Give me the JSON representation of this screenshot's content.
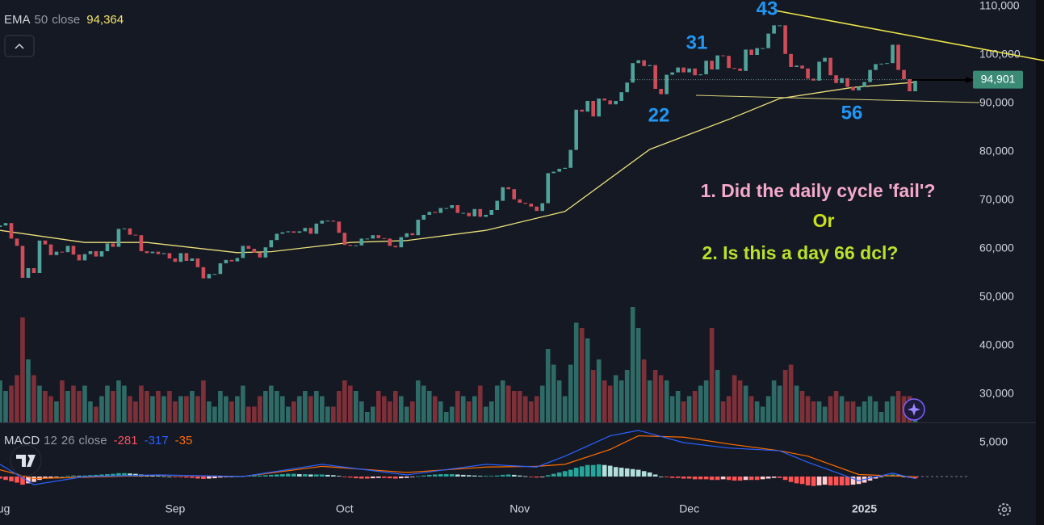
{
  "chart_data": {
    "type": "candlestick",
    "ema": {
      "name": "EMA",
      "length": 50,
      "source": "close",
      "last": {
        "value": 94364,
        "label": "94,364"
      },
      "color": "#ebe07a",
      "x": [
        0,
        15,
        26,
        42,
        48,
        62,
        72,
        86,
        100,
        115,
        129,
        138,
        151,
        162
      ],
      "values": [
        63800,
        61300,
        61300,
        59200,
        59400,
        61300,
        61700,
        63800,
        67700,
        80500,
        86700,
        91000,
        93300,
        94364
      ]
    },
    "candles": {
      "up_color": "#4fa39a",
      "down_color": "#d04c58",
      "first_open": 64500,
      "close": [
        64800,
        65300,
        62100,
        60600,
        54000,
        56000,
        55000,
        61700,
        60900,
        58700,
        59400,
        59300,
        60600,
        58800,
        57600,
        58900,
        59500,
        58400,
        59500,
        61100,
        60400,
        64100,
        64200,
        62900,
        62800,
        59500,
        59100,
        59400,
        58900,
        59100,
        58000,
        57300,
        59100,
        57500,
        58000,
        56200,
        53900,
        54800,
        54800,
        57000,
        57700,
        57400,
        58100,
        60600,
        60000,
        59200,
        58200,
        60300,
        61800,
        63100,
        63400,
        63600,
        63300,
        63600,
        64300,
        63100,
        65200,
        65800,
        65800,
        65600,
        63300,
        60800,
        60600,
        60700,
        62100,
        62100,
        62800,
        62200,
        62100,
        60600,
        60300,
        62400,
        63200,
        62800,
        66000,
        67000,
        67600,
        67400,
        68400,
        68400,
        69000,
        67400,
        67400,
        66700,
        68200,
        66600,
        67000,
        68000,
        69900,
        72700,
        72300,
        70200,
        69500,
        69300,
        68700,
        67800,
        69400,
        75600,
        75900,
        76500,
        76700,
        80400,
        88700,
        88300,
        90500,
        87300,
        91000,
        90600,
        89800,
        90500,
        92300,
        94300,
        98300,
        98900,
        97700,
        97900,
        93000,
        91900,
        95900,
        96400,
        97400,
        96400,
        97200,
        95800,
        96000,
        98800,
        97000,
        99900,
        99800,
        97300,
        97200,
        96700,
        101100,
        100000,
        101400,
        101400,
        104400,
        106100,
        106100,
        100200,
        97500,
        97800,
        97200,
        95100,
        94700,
        98600,
        99400,
        95800,
        94200,
        95200,
        93400,
        92700,
        93400,
        94400,
        96900,
        98100,
        98200,
        98300,
        102100,
        96900,
        95000,
        92500,
        94900
      ]
    },
    "volume": {
      "up_color": "#2f6b66",
      "down_color": "#7e3038",
      "values": [
        40,
        30,
        35,
        45,
        100,
        60,
        45,
        35,
        30,
        25,
        20,
        40,
        30,
        35,
        30,
        35,
        20,
        15,
        25,
        35,
        30,
        40,
        35,
        25,
        20,
        35,
        30,
        25,
        30,
        25,
        30,
        20,
        25,
        25,
        30,
        25,
        40,
        20,
        15,
        30,
        25,
        20,
        25,
        35,
        15,
        15,
        25,
        30,
        35,
        30,
        25,
        15,
        20,
        25,
        30,
        25,
        30,
        25,
        15,
        15,
        30,
        40,
        35,
        30,
        20,
        10,
        15,
        30,
        25,
        20,
        30,
        25,
        15,
        20,
        40,
        35,
        30,
        25,
        20,
        10,
        15,
        30,
        25,
        20,
        25,
        35,
        15,
        20,
        35,
        40,
        35,
        30,
        30,
        25,
        20,
        25,
        35,
        70,
        55,
        40,
        25,
        55,
        95,
        90,
        80,
        50,
        60,
        40,
        35,
        45,
        40,
        50,
        110,
        90,
        60,
        40,
        50,
        45,
        40,
        25,
        30,
        20,
        25,
        30,
        35,
        40,
        90,
        50,
        20,
        25,
        45,
        40,
        35,
        25,
        20,
        15,
        25,
        40,
        35,
        50,
        55,
        35,
        30,
        25,
        20,
        20,
        15,
        25,
        30,
        25,
        20,
        20,
        15,
        20,
        25,
        20,
        10,
        20,
        25,
        30,
        25,
        25,
        20
      ]
    },
    "ylim": [
      24170,
      111330
    ],
    "yticks": [
      {
        "value": 30000,
        "label": "30,000"
      },
      {
        "value": 40000,
        "label": "40,000"
      },
      {
        "value": 50000,
        "label": "50,000"
      },
      {
        "value": 60000,
        "label": "60,000"
      },
      {
        "value": 70000,
        "label": "70,000"
      },
      {
        "value": 80000,
        "label": "80,000"
      },
      {
        "value": 90000,
        "label": "90,000"
      },
      {
        "value": 100000,
        "label": "100,000"
      },
      {
        "value": 110000,
        "label": "110,000"
      }
    ],
    "xlim": [
      0,
      171.5
    ],
    "xticks": [
      {
        "value": 0,
        "label": "Aug"
      },
      {
        "value": 31,
        "label": "Sep"
      },
      {
        "value": 61,
        "label": "Oct"
      },
      {
        "value": 92,
        "label": "Nov"
      },
      {
        "value": 122,
        "label": "Dec"
      },
      {
        "value": 153,
        "label": "2025"
      }
    ],
    "last_price": {
      "value": 94901,
      "label": "94,901"
    },
    "annotations": [
      "43",
      "31",
      "22",
      "56"
    ],
    "notes": [
      "1. Did the daily cycle 'fail'?",
      "Or",
      "2. Is this a day 66 dcl?"
    ],
    "macd": {
      "name": "MACD",
      "fast": 12,
      "slow": 26,
      "source": "close",
      "hist_last": -281,
      "macd_last": -317,
      "signal_last": -35,
      "ylim": [
        -3570,
        7735
      ],
      "yticks": [
        {
          "value": 5000,
          "label": "5,000"
        }
      ],
      "hist_colors": [
        "#26a69a",
        "#b2dfdb",
        "#ff5252",
        "#ffcdd2"
      ],
      "histogram": [
        -300,
        -500,
        -700,
        -900,
        -1200,
        -1000,
        -800,
        -500,
        -300,
        -200,
        -100,
        0,
        100,
        150,
        100,
        150,
        200,
        250,
        300,
        350,
        400,
        500,
        500,
        450,
        400,
        300,
        250,
        150,
        100,
        50,
        0,
        -50,
        -100,
        -150,
        -200,
        -300,
        -350,
        -300,
        -250,
        -150,
        -100,
        -50,
        0,
        100,
        150,
        150,
        150,
        200,
        250,
        300,
        350,
        400,
        400,
        350,
        350,
        300,
        300,
        300,
        250,
        200,
        100,
        -50,
        -150,
        -250,
        -300,
        -300,
        -250,
        -200,
        -200,
        -250,
        -300,
        -250,
        -200,
        -100,
        50,
        150,
        250,
        300,
        350,
        350,
        350,
        300,
        250,
        200,
        150,
        100,
        100,
        100,
        150,
        250,
        300,
        250,
        150,
        50,
        -50,
        -150,
        -100,
        200,
        400,
        600,
        800,
        1000,
        1300,
        1500,
        1700,
        1700,
        1800,
        1700,
        1600,
        1400,
        1300,
        1200,
        1100,
        1000,
        800,
        600,
        300,
        0,
        -100,
        -200,
        -200,
        -300,
        -300,
        -400,
        -400,
        -400,
        -500,
        -500,
        -400,
        -500,
        -600,
        -600,
        -500,
        -500,
        -500,
        -400,
        -300,
        -200,
        -200,
        -500,
        -800,
        -1000,
        -1100,
        -1300,
        -1400,
        -1300,
        -1200,
        -1300,
        -1300,
        -1300,
        -1300,
        -1200,
        -1100,
        -900,
        -600,
        -300,
        -100,
        100,
        300,
        200,
        0,
        -200,
        -281
      ],
      "macd_line": {
        "color": "#2962ff",
        "x": [
          0,
          6,
          15,
          28,
          43,
          57,
          72,
          86,
          95,
          100,
          108,
          113,
          121,
          129,
          138,
          143,
          152,
          158,
          162
        ],
        "values": [
          1800,
          -1200,
          0,
          240,
          0,
          1800,
          240,
          1800,
          1400,
          3000,
          6000,
          6800,
          5000,
          4200,
          3800,
          2100,
          -600,
          500,
          -317
        ]
      },
      "signal_line": {
        "color": "#ff6d00",
        "x": [
          0,
          6,
          15,
          28,
          43,
          57,
          72,
          86,
          95,
          100,
          108,
          113,
          121,
          129,
          138,
          143,
          152,
          158,
          162
        ],
        "values": [
          1000,
          -300,
          -100,
          200,
          0,
          1500,
          600,
          1400,
          1500,
          1800,
          4000,
          6000,
          5800,
          4800,
          3800,
          3000,
          300,
          100,
          -35
        ]
      }
    }
  }
}
